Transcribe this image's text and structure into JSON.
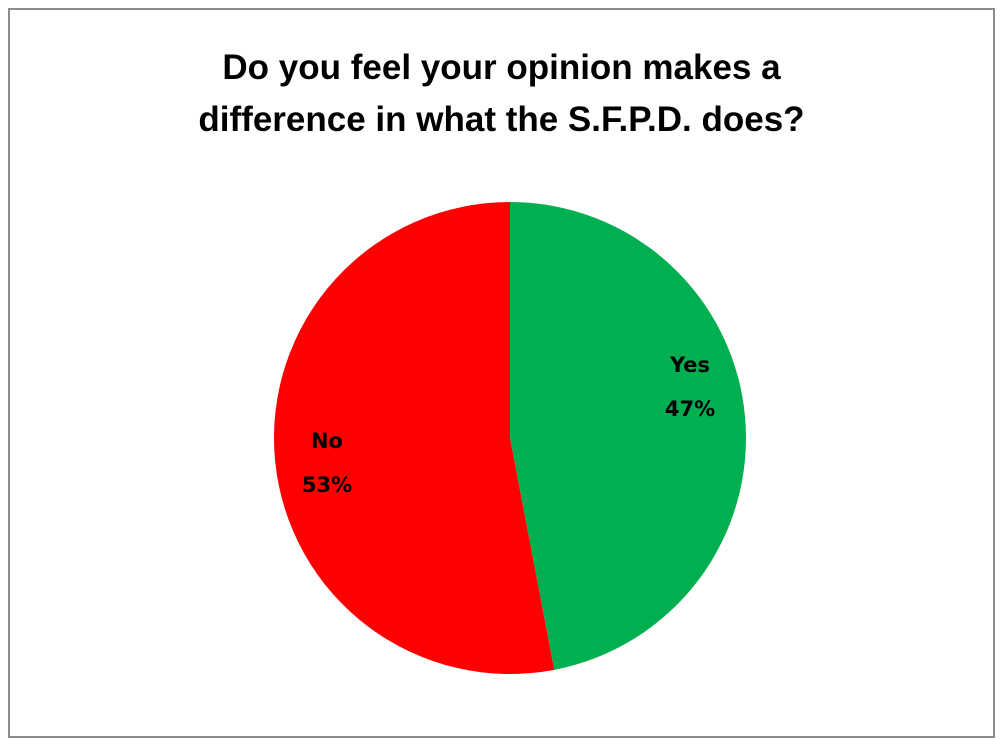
{
  "chart_data": {
    "type": "pie",
    "title": "Do you feel your opinion makes a difference in what the S.F.P.D. does?",
    "title_lines": [
      "Do you feel your opinion makes a",
      "difference in what the S.F.P.D.  does?"
    ],
    "slices": [
      {
        "category": "Yes",
        "value": 47,
        "percent_label": "47%",
        "color": "#00B050"
      },
      {
        "category": "No",
        "value": 53,
        "percent_label": "53%",
        "color": "#FF0000"
      }
    ]
  }
}
